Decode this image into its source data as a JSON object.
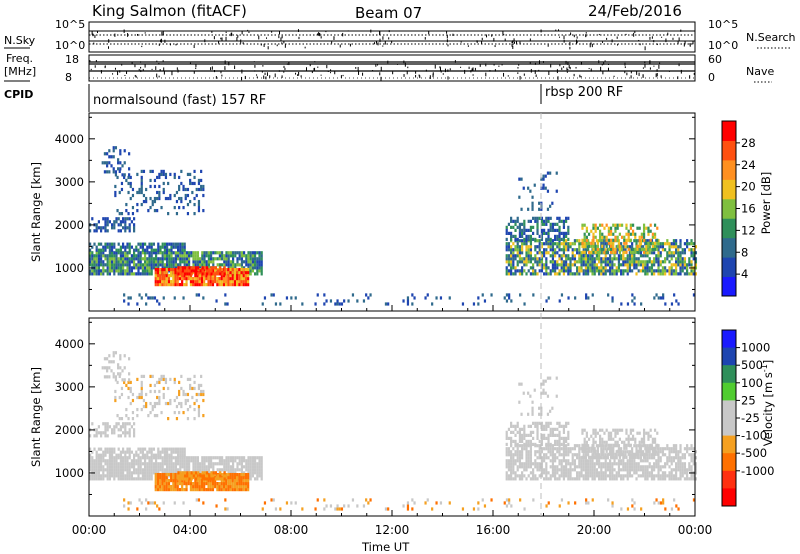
{
  "header": {
    "station": "King Salmon (fitACF)",
    "beam": "Beam 07",
    "date": "24/Feb/2016"
  },
  "strip": {
    "nsky_label": "N.Sky",
    "nsearch_label": "N.Search",
    "nsky_ticks": [
      "10^5",
      "10^0"
    ],
    "nsearch_ticks": [
      "10^5",
      "10^0"
    ],
    "freq_label_1": "Freq.",
    "freq_label_2": "[MHz]",
    "freq_ticks": [
      "18",
      "8"
    ],
    "nave_label": "Nave",
    "nave_ticks": [
      "60",
      "0"
    ],
    "cpid_label": "CPID",
    "cpid_segments": [
      {
        "label": "normalsound (fast) 157 RF",
        "start_hour": 0
      },
      {
        "label": "rbsp 200 RF",
        "start_hour": 18
      }
    ]
  },
  "colors": {
    "power": [
      "#1a1aff",
      "#1e45b0",
      "#2f6a8c",
      "#2f8f5a",
      "#7fbf3f",
      "#f0c020",
      "#ff9020",
      "#ff5010",
      "#ff0000"
    ],
    "velocity": [
      "#1a1aff",
      "#1e45b0",
      "#2f8f5a",
      "#50cc30",
      "#c8c8c8",
      "#c8c8c8",
      "#f5a020",
      "#ff7000",
      "#ff3010",
      "#ff0000"
    ]
  },
  "chart_data": [
    {
      "type": "heatmap",
      "name": "power",
      "ylabel": "Slant Range [km]",
      "ylim": [
        0,
        4600
      ],
      "yticks": [
        "1000",
        "2000",
        "3000",
        "4000"
      ],
      "xlim_hours": [
        0,
        24
      ],
      "colorbar_label": "Power [dB]",
      "colorbar_ticks": [
        "4",
        "8",
        "12",
        "16",
        "20",
        "24",
        "28"
      ],
      "colorbar_range": [
        0,
        32
      ]
    },
    {
      "type": "heatmap",
      "name": "velocity",
      "ylabel": "Slant Range [km]",
      "ylim": [
        0,
        4600
      ],
      "yticks": [
        "1000",
        "2000",
        "3000",
        "4000"
      ],
      "xlim_hours": [
        0,
        24
      ],
      "colorbar_label": "Velocity [m s^-1]",
      "colorbar_ticks": [
        "1000",
        "500",
        "100",
        "25",
        "-25",
        "-100",
        "-500",
        "-1000"
      ]
    }
  ],
  "xaxis": {
    "label": "Time UT",
    "ticks": [
      "00:00",
      "04:00",
      "08:00",
      "12:00",
      "16:00",
      "20:00",
      "00:00"
    ]
  }
}
